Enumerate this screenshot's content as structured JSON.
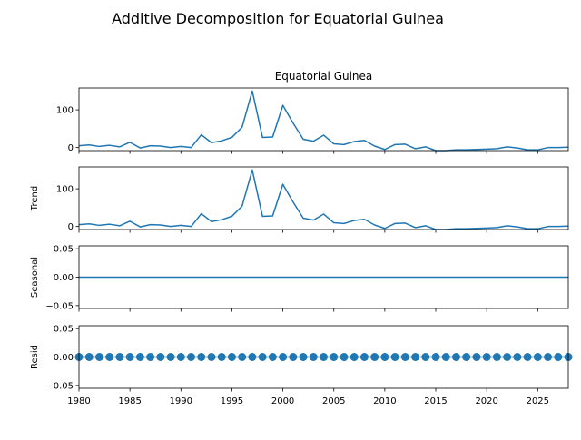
{
  "chart_data": {
    "type": "line",
    "title": "Additive Decomposition for Equatorial Guinea",
    "x": [
      1980,
      1981,
      1982,
      1983,
      1984,
      1985,
      1986,
      1987,
      1988,
      1989,
      1990,
      1991,
      1992,
      1993,
      1994,
      1995,
      1996,
      1997,
      1998,
      1999,
      2000,
      2001,
      2002,
      2003,
      2004,
      2005,
      2006,
      2007,
      2008,
      2009,
      2010,
      2011,
      2012,
      2013,
      2014,
      2015,
      2016,
      2017,
      2018,
      2019,
      2020,
      2021,
      2022,
      2023,
      2024,
      2025,
      2026,
      2027,
      2028
    ],
    "xlim": [
      1980,
      2028
    ],
    "xticks": [
      "1980",
      "1985",
      "1990",
      "1995",
      "2000",
      "2005",
      "2010",
      "2015",
      "2020",
      "2025"
    ],
    "panels": [
      {
        "name": "observed",
        "title": "Equatorial Guinea",
        "ylabel": "",
        "style": "line",
        "ylim": [
          -8,
          158
        ],
        "yticks": [
          "0",
          "100"
        ],
        "values": [
          5,
          7,
          3,
          6,
          2,
          14,
          -1,
          5,
          4,
          0,
          3,
          0,
          34,
          13,
          18,
          27,
          54,
          150,
          27,
          28,
          112,
          65,
          22,
          17,
          33,
          10,
          8,
          16,
          19,
          4,
          -5,
          8,
          9,
          -3,
          2,
          -8,
          -8,
          -6,
          -6,
          -5,
          -4,
          -3,
          2,
          -1,
          -6,
          -6,
          0,
          0,
          1
        ]
      },
      {
        "name": "trend",
        "title": "",
        "ylabel": "Trend",
        "style": "line",
        "ylim": [
          -8,
          158
        ],
        "yticks": [
          "0",
          "100"
        ],
        "values": [
          5,
          7,
          3,
          6,
          2,
          14,
          -1,
          5,
          4,
          0,
          3,
          0,
          34,
          13,
          18,
          27,
          54,
          150,
          27,
          28,
          112,
          65,
          22,
          17,
          33,
          10,
          8,
          16,
          19,
          4,
          -5,
          8,
          9,
          -3,
          2,
          -8,
          -8,
          -6,
          -6,
          -5,
          -4,
          -3,
          2,
          -1,
          -6,
          -6,
          0,
          0,
          1
        ]
      },
      {
        "name": "seasonal",
        "title": "",
        "ylabel": "Seasonal",
        "style": "line",
        "ylim": [
          -0.055,
          0.055
        ],
        "yticks": [
          "−0.05",
          "0.00",
          "0.05"
        ],
        "values": [
          0,
          0,
          0,
          0,
          0,
          0,
          0,
          0,
          0,
          0,
          0,
          0,
          0,
          0,
          0,
          0,
          0,
          0,
          0,
          0,
          0,
          0,
          0,
          0,
          0,
          0,
          0,
          0,
          0,
          0,
          0,
          0,
          0,
          0,
          0,
          0,
          0,
          0,
          0,
          0,
          0,
          0,
          0,
          0,
          0,
          0,
          0,
          0,
          0
        ]
      },
      {
        "name": "resid",
        "title": "",
        "ylabel": "Resid",
        "style": "scatter",
        "ylim": [
          -0.055,
          0.055
        ],
        "yticks": [
          "−0.05",
          "0.00",
          "0.05"
        ],
        "values": [
          0,
          0,
          0,
          0,
          0,
          0,
          0,
          0,
          0,
          0,
          0,
          0,
          0,
          0,
          0,
          0,
          0,
          0,
          0,
          0,
          0,
          0,
          0,
          0,
          0,
          0,
          0,
          0,
          0,
          0,
          0,
          0,
          0,
          0,
          0,
          0,
          0,
          0,
          0,
          0,
          0,
          0,
          0,
          0,
          0,
          0,
          0,
          0,
          0
        ]
      }
    ],
    "colors": {
      "series": "#1f77b4",
      "axes": "#000000"
    }
  }
}
